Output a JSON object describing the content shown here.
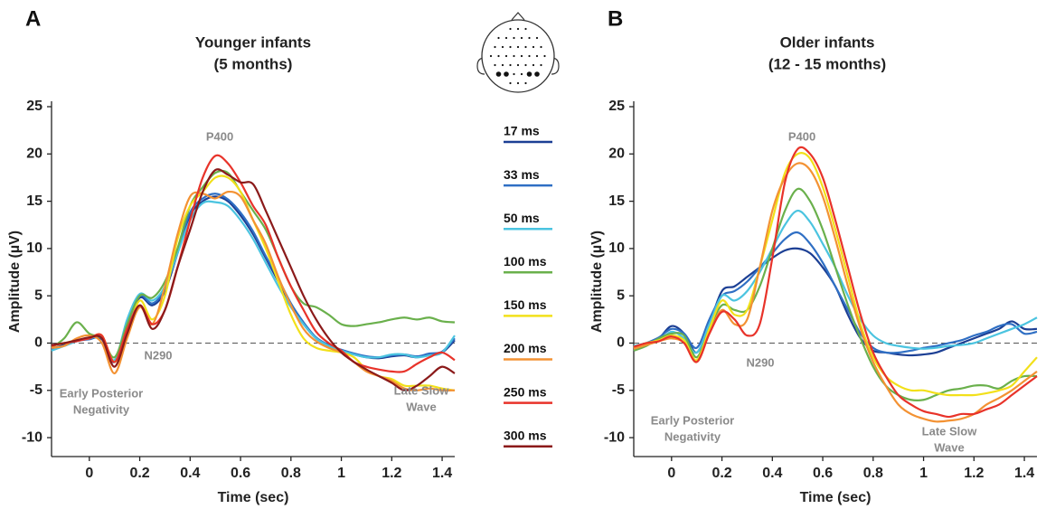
{
  "chart_data": [
    {
      "type": "line",
      "panel": "A",
      "title": [
        "Younger infants",
        "(5 months)"
      ],
      "x_label": "Time (sec)",
      "y_label": "Amplitude (µV)",
      "annotations": [
        [
          "P400"
        ],
        [
          "N290"
        ],
        [
          "Early Posterior",
          "Negativity"
        ],
        [
          "Late Slow",
          "Wave"
        ]
      ],
      "xlim": [
        -0.15,
        1.45
      ],
      "ylim": [
        -12,
        25
      ],
      "xticks": [
        0,
        0.2,
        0.4,
        0.6,
        0.8,
        1,
        1.2,
        1.4
      ],
      "yticks": [
        -10,
        -5,
        0,
        5,
        10,
        15,
        20,
        25
      ],
      "x": [
        -0.15,
        -0.1,
        -0.05,
        0,
        0.05,
        0.1,
        0.15,
        0.2,
        0.25,
        0.3,
        0.35,
        0.4,
        0.45,
        0.5,
        0.55,
        0.6,
        0.65,
        0.7,
        0.75,
        0.8,
        0.85,
        0.9,
        0.95,
        1.0,
        1.05,
        1.1,
        1.15,
        1.2,
        1.25,
        1.3,
        1.35,
        1.4,
        1.45
      ],
      "series": [
        {
          "name": "17 ms",
          "color": "#1c3f94",
          "values": [
            -0.6,
            -0.2,
            0.3,
            0.5,
            0.4,
            -2,
            2,
            4.8,
            4,
            5.5,
            9.5,
            13.5,
            15,
            15.5,
            15,
            13.5,
            11.5,
            9,
            6.5,
            4,
            2,
            0.5,
            -0.3,
            -0.8,
            -1.2,
            -1.5,
            -1.6,
            -1.4,
            -1.3,
            -1.5,
            -1.2,
            -1,
            0.3
          ]
        },
        {
          "name": "33 ms",
          "color": "#2f6fc4",
          "values": [
            -0.7,
            -0.3,
            0.2,
            0.4,
            0.5,
            -1.9,
            2.2,
            5,
            4.2,
            5.8,
            9.8,
            13.8,
            15.3,
            15.8,
            15.2,
            13.8,
            11.8,
            9.2,
            6.8,
            4.2,
            2.2,
            0.6,
            -0.2,
            -0.7,
            -1.1,
            -1.4,
            -1.5,
            -1.3,
            -1.2,
            -1.4,
            -1.1,
            -0.9,
            0.5
          ]
        },
        {
          "name": "50 ms",
          "color": "#4bc4e0",
          "values": [
            -0.8,
            -0.3,
            0.2,
            0.5,
            0.6,
            -1.8,
            2.5,
            5.2,
            4.5,
            6,
            9.5,
            13,
            14.8,
            14.9,
            14.5,
            13,
            11,
            8.5,
            6,
            3.8,
            2,
            0.5,
            -0.3,
            -0.8,
            -1.2,
            -1.5,
            -1.5,
            -1.2,
            -1.2,
            -1.5,
            -1.3,
            -1,
            0.8
          ]
        },
        {
          "name": "100 ms",
          "color": "#6ab04c",
          "values": [
            -0.5,
            0.5,
            2.2,
            1,
            0.5,
            -1.5,
            2,
            5,
            4.8,
            6.5,
            10,
            14.5,
            16.5,
            18,
            18,
            16,
            14,
            12,
            9,
            6,
            4.2,
            3.8,
            3,
            2,
            1.8,
            2,
            2.2,
            2.5,
            2.7,
            2.5,
            2.7,
            2.3,
            2.2
          ]
        },
        {
          "name": "150 ms",
          "color": "#f2e01a",
          "values": [
            -0.3,
            0,
            0.3,
            0.5,
            0.8,
            -2,
            1,
            4.5,
            2.5,
            5,
            11,
            14.5,
            16,
            17.5,
            17.5,
            16,
            13,
            10,
            6.5,
            3,
            0.5,
            -0.5,
            -0.8,
            -1,
            -1.5,
            -2.8,
            -3.5,
            -3.8,
            -4.5,
            -4.5,
            -4.5,
            -4.8,
            -5
          ]
        },
        {
          "name": "200 ms",
          "color": "#f39233",
          "values": [
            -0.5,
            -0.3,
            0.5,
            0.8,
            0,
            -3.2,
            0.5,
            3.8,
            2,
            6,
            11.5,
            15.5,
            15.8,
            15.3,
            16,
            15.5,
            13,
            10.5,
            7,
            4,
            1.5,
            0.2,
            -0.5,
            -1,
            -2,
            -3,
            -3.5,
            -4,
            -4.8,
            -5,
            -4.8,
            -5,
            -5
          ]
        },
        {
          "name": "250 ms",
          "color": "#e8332a",
          "values": [
            -0.3,
            0,
            0.2,
            0.5,
            0.8,
            -2,
            1.5,
            4,
            2,
            3.5,
            8,
            13,
            17.5,
            19.8,
            19,
            17,
            14.5,
            12.5,
            9,
            6,
            3.5,
            1.2,
            0,
            -0.8,
            -2,
            -2.5,
            -2.8,
            -3,
            -3,
            -2.2,
            -1.5,
            -1,
            -1.8
          ]
        },
        {
          "name": "300 ms",
          "color": "#8b1a1a",
          "values": [
            -0.2,
            0,
            0.3,
            0.6,
            0.5,
            -2.5,
            1,
            4,
            1.5,
            3.5,
            8,
            12,
            16,
            18.3,
            17.8,
            17,
            16.8,
            14,
            11,
            8,
            5,
            2.5,
            0.5,
            -1,
            -2,
            -2.8,
            -3.5,
            -4.2,
            -5,
            -4.5,
            -3.5,
            -2.5,
            -3.2
          ]
        }
      ]
    },
    {
      "type": "line",
      "panel": "B",
      "title": [
        "Older infants",
        "(12 - 15 months)"
      ],
      "x_label": "Time (sec)",
      "y_label": "Amplitude (µV)",
      "annotations": [
        [
          "P400"
        ],
        [
          "N290"
        ],
        [
          "Early Posterior",
          "Negativity"
        ],
        [
          "Late Slow",
          "Wave"
        ]
      ],
      "xlim": [
        -0.15,
        1.45
      ],
      "ylim": [
        -12,
        25
      ],
      "xticks": [
        0,
        0.2,
        0.4,
        0.6,
        0.8,
        1,
        1.2,
        1.4
      ],
      "yticks": [
        -10,
        -5,
        0,
        5,
        10,
        15,
        20,
        25
      ],
      "x": [
        -0.15,
        -0.1,
        -0.05,
        0,
        0.05,
        0.1,
        0.15,
        0.2,
        0.25,
        0.3,
        0.35,
        0.4,
        0.45,
        0.5,
        0.55,
        0.6,
        0.65,
        0.7,
        0.75,
        0.8,
        0.85,
        0.9,
        0.95,
        1.0,
        1.05,
        1.1,
        1.15,
        1.2,
        1.25,
        1.3,
        1.35,
        1.4,
        1.45
      ],
      "series": [
        {
          "color": "#1c3f94",
          "values": [
            -0.8,
            -0.2,
            0.5,
            1.8,
            1,
            -1,
            2,
            5.5,
            6,
            7,
            8,
            9,
            9.8,
            10,
            9.5,
            8,
            6,
            3,
            0.5,
            -0.8,
            -1,
            -1.2,
            -1.3,
            -1.2,
            -1,
            -0.5,
            0,
            0.5,
            1,
            1.5,
            2.3,
            1.5,
            1.5
          ]
        },
        {
          "color": "#2f6fc4",
          "values": [
            -0.5,
            0,
            0.6,
            1.5,
            1,
            -0.5,
            2.5,
            5,
            5.5,
            6.5,
            8,
            9.5,
            11,
            11.7,
            10.5,
            8.5,
            6,
            3.5,
            1,
            -0.5,
            -1,
            -1,
            -0.8,
            -0.5,
            -0.3,
            0,
            0.3,
            0.8,
            1.2,
            1.8,
            2,
            1,
            1.2
          ]
        },
        {
          "color": "#4bc4e0",
          "values": [
            -0.3,
            0,
            0.3,
            1.2,
            0.5,
            -1,
            2,
            5,
            4.5,
            5.5,
            7.5,
            10,
            12.5,
            14,
            12.8,
            10.5,
            8,
            5,
            2.5,
            0.8,
            0,
            -0.3,
            -0.5,
            -0.6,
            -0.5,
            -0.3,
            -0.2,
            0,
            0.5,
            1,
            1.5,
            2,
            2.7
          ]
        },
        {
          "color": "#6ab04c",
          "values": [
            -0.8,
            -0.3,
            0.5,
            1,
            0.8,
            -1.5,
            1.5,
            4,
            3.5,
            3.5,
            6,
            10,
            14,
            16.3,
            15,
            12,
            8,
            4,
            0.5,
            -2.5,
            -4.5,
            -5.5,
            -6,
            -6,
            -5.5,
            -5,
            -4.8,
            -4.5,
            -4.5,
            -4.8,
            -4,
            -3.5,
            -3.5
          ]
        },
        {
          "color": "#f2e01a",
          "values": [
            -0.5,
            0,
            0.3,
            0.8,
            0.3,
            -1.8,
            1.5,
            4.5,
            3,
            3.5,
            8,
            13,
            18,
            20,
            19.5,
            16.5,
            12,
            7,
            2,
            -1.5,
            -3.5,
            -4.5,
            -5,
            -5,
            -5.3,
            -5.5,
            -5.5,
            -5.5,
            -5.3,
            -5,
            -4.5,
            -3,
            -1.5
          ]
        },
        {
          "color": "#f39233",
          "values": [
            -0.6,
            -0.2,
            0.2,
            0.5,
            0,
            -2,
            1,
            3.5,
            2,
            2.5,
            8,
            14,
            17.5,
            19,
            18.3,
            15.5,
            11,
            6,
            1.5,
            -2,
            -4.5,
            -6.5,
            -7.5,
            -8,
            -8.3,
            -8.2,
            -8,
            -7.5,
            -6.5,
            -5.8,
            -5,
            -4,
            -3
          ]
        },
        {
          "color": "#e8332a",
          "values": [
            -0.4,
            0,
            0.2,
            0.7,
            0,
            -2,
            1,
            3.3,
            2.5,
            0.8,
            2,
            9,
            17,
            20.5,
            20,
            17.5,
            13,
            8,
            3,
            -1,
            -3.5,
            -5.5,
            -6.5,
            -7.2,
            -7.5,
            -7.8,
            -7.5,
            -7.5,
            -7,
            -6.5,
            -5.5,
            -4.5,
            -3.5
          ]
        }
      ]
    }
  ]
}
